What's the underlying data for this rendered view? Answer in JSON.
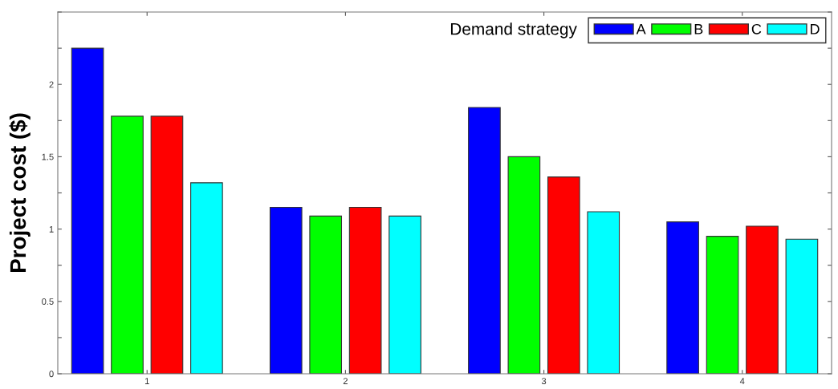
{
  "chart_data": {
    "type": "bar",
    "ylabel": "Project cost ($)",
    "legend_title": "Demand strategy",
    "categories": [
      "1",
      "2",
      "3",
      "4"
    ],
    "series": [
      {
        "name": "A",
        "color": "#0000ff",
        "values": [
          2.25,
          1.15,
          1.84,
          1.05
        ]
      },
      {
        "name": "B",
        "color": "#00ff00",
        "values": [
          1.78,
          1.09,
          1.5,
          0.95
        ]
      },
      {
        "name": "C",
        "color": "#ff0000",
        "values": [
          1.78,
          1.15,
          1.36,
          1.02
        ]
      },
      {
        "name": "D",
        "color": "#00ffff",
        "values": [
          1.32,
          1.09,
          1.12,
          0.93
        ]
      }
    ],
    "ylim": [
      0,
      2.5
    ],
    "yticks": [
      0,
      {
        "value": 0.25,
        "label": null
      },
      0.5,
      {
        "value": 0.75,
        "label": null
      },
      1,
      {
        "value": 1.25,
        "label": null
      },
      1.5,
      {
        "value": 1.75,
        "label": null
      },
      2,
      {
        "value": 2.25,
        "label": null
      },
      {
        "value": 2.5,
        "label": null
      }
    ],
    "legend": "top right",
    "grid": false
  }
}
